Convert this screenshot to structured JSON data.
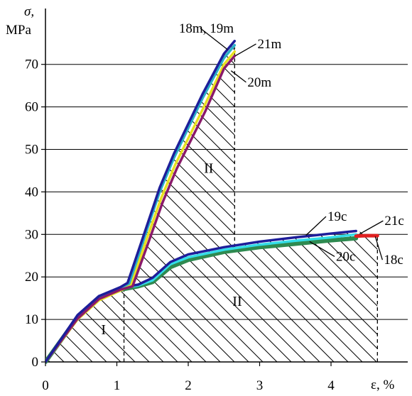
{
  "chart_data": {
    "type": "line",
    "y_axis_label": "σ,",
    "y_axis_unit": "MPa",
    "x_axis_label": "ε, %",
    "xlim": [
      0,
      5
    ],
    "ylim": [
      0,
      80
    ],
    "x_ticks": [
      "0",
      "1",
      "2",
      "3",
      "4"
    ],
    "y_ticks": [
      "0",
      "10",
      "20",
      "30",
      "40",
      "50",
      "60",
      "70"
    ],
    "grid": "horizontal",
    "series": [
      {
        "name": "18m",
        "color": "#1e1e9a",
        "points": [
          [
            0,
            0
          ],
          [
            0.45,
            11
          ],
          [
            0.75,
            15.5
          ],
          [
            1.05,
            17.6
          ],
          [
            1.15,
            18.6
          ],
          [
            1.4,
            31
          ],
          [
            1.6,
            41
          ],
          [
            1.8,
            49
          ],
          [
            2.2,
            63
          ],
          [
            2.5,
            72.5
          ],
          [
            2.65,
            75.5
          ]
        ]
      },
      {
        "name": "19m",
        "color": "#2ab0c8",
        "points": [
          [
            0,
            0
          ],
          [
            0.45,
            10.5
          ],
          [
            0.75,
            15
          ],
          [
            1.05,
            17.2
          ],
          [
            1.18,
            18.4
          ],
          [
            1.4,
            30
          ],
          [
            1.6,
            40
          ],
          [
            1.8,
            48
          ],
          [
            2.2,
            62
          ],
          [
            2.5,
            71.5
          ],
          [
            2.65,
            74.5
          ]
        ]
      },
      {
        "name": "20m",
        "color": "#e8e020",
        "points": [
          [
            0,
            0
          ],
          [
            0.45,
            10
          ],
          [
            0.75,
            14.5
          ],
          [
            1.05,
            16.8
          ],
          [
            1.2,
            18
          ],
          [
            1.42,
            29
          ],
          [
            1.62,
            38.5
          ],
          [
            1.82,
            46.5
          ],
          [
            2.22,
            60
          ],
          [
            2.5,
            70
          ],
          [
            2.65,
            73
          ]
        ]
      },
      {
        "name": "21m",
        "color": "#8a1a6a",
        "points": [
          [
            0,
            0
          ],
          [
            0.45,
            10.2
          ],
          [
            0.75,
            14.8
          ],
          [
            1.05,
            17
          ],
          [
            1.22,
            17.8
          ],
          [
            1.44,
            28
          ],
          [
            1.64,
            37.5
          ],
          [
            1.84,
            45.5
          ],
          [
            2.24,
            59
          ],
          [
            2.5,
            69
          ],
          [
            2.65,
            72
          ]
        ]
      },
      {
        "name": "19c",
        "color": "#1e1e9a",
        "points": [
          [
            0,
            0
          ],
          [
            0.45,
            11
          ],
          [
            0.75,
            15.5
          ],
          [
            1.05,
            17.5
          ],
          [
            1.3,
            18.2
          ],
          [
            1.5,
            19.8
          ],
          [
            1.75,
            23.5
          ],
          [
            2,
            25.3
          ],
          [
            2.5,
            27
          ],
          [
            3,
            28.3
          ],
          [
            3.5,
            29.3
          ],
          [
            4,
            30.2
          ],
          [
            4.35,
            30.8
          ]
        ]
      },
      {
        "name": "20c",
        "color": "#2e8a50",
        "points": [
          [
            0,
            0
          ],
          [
            0.45,
            10.5
          ],
          [
            0.75,
            15
          ],
          [
            1.05,
            17
          ],
          [
            1.3,
            17.8
          ],
          [
            1.5,
            18.8
          ],
          [
            1.75,
            22.3
          ],
          [
            2,
            24
          ],
          [
            2.5,
            25.9
          ],
          [
            3,
            27
          ],
          [
            3.5,
            27.8
          ],
          [
            4,
            28.6
          ],
          [
            4.35,
            29.1
          ]
        ]
      },
      {
        "name": "21c",
        "color": "#33dde8",
        "points": [
          [
            0,
            0
          ],
          [
            0.45,
            10.2
          ],
          [
            0.75,
            14.8
          ],
          [
            1.05,
            17.2
          ],
          [
            1.3,
            18
          ],
          [
            1.5,
            19.2
          ],
          [
            1.75,
            23
          ],
          [
            2,
            24.6
          ],
          [
            2.5,
            26.4
          ],
          [
            3,
            27.6
          ],
          [
            3.5,
            28.5
          ],
          [
            4,
            29.3
          ],
          [
            4.35,
            30
          ]
        ]
      },
      {
        "name": "18c",
        "color": "#e02020",
        "points": [
          [
            4.35,
            29.6
          ],
          [
            4.5,
            29.7
          ],
          [
            4.65,
            29.7
          ]
        ]
      }
    ],
    "annotations": [
      {
        "text": "18m, 19m",
        "x": 1.87,
        "y": 77.5,
        "ax": 2.55,
        "ay": 73.5
      },
      {
        "text": "21m",
        "x": 2.97,
        "y": 73.8,
        "ax": 2.66,
        "ay": 72
      },
      {
        "text": "20m",
        "x": 2.83,
        "y": 64.8,
        "ax": 2.6,
        "ay": 68.5
      },
      {
        "text": "19c",
        "x": 3.95,
        "y": 33.2,
        "ax": 3.65,
        "ay": 29.8
      },
      {
        "text": "21c",
        "x": 4.75,
        "y": 32.2,
        "ax": 4.4,
        "ay": 30.1
      },
      {
        "text": "20c",
        "x": 4.07,
        "y": 23.8,
        "ax": 3.7,
        "ay": 28.3
      },
      {
        "text": "18c",
        "x": 4.74,
        "y": 23,
        "ax": 4.62,
        "ay": 29.5
      }
    ],
    "regions": [
      {
        "label": "I",
        "x": 0.78,
        "y": 6.5
      },
      {
        "label": "II",
        "x": 2.22,
        "y": 44.5
      },
      {
        "label": "II",
        "x": 2.62,
        "y": 13.2
      }
    ],
    "dashed_lines": [
      {
        "x": 1.1,
        "from": 0,
        "to": 18
      },
      {
        "x": 2.65,
        "from": 27,
        "to": 74
      },
      {
        "x": 4.65,
        "from": 0,
        "to": 29.7
      }
    ]
  }
}
